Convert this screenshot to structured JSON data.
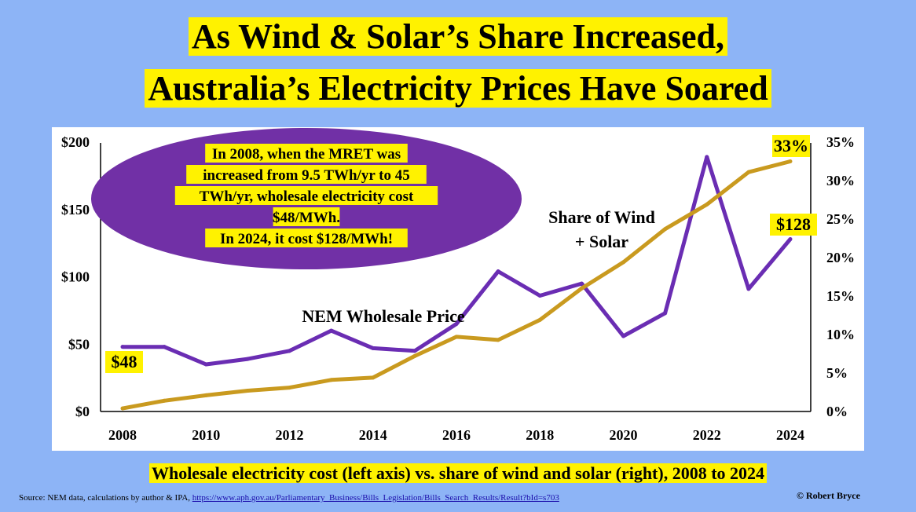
{
  "title_line1": "As Wind & Solar’s Share Increased,",
  "title_line2": "Australia’s Electricity Prices Have Soared",
  "ellipse_text": [
    "In 2008, when the MRET was",
    "increased from 9.5 TWh/yr to 45",
    "TWh/yr, wholesale electricity cost",
    "$48/MWh.",
    "In 2024, it cost $128/MWh!"
  ],
  "caption": "Wholesale electricity cost (left axis) vs. share of wind and solar (right), 2008 to 2024",
  "source_prefix": "Source: NEM data, calculations by author  & IPA, ",
  "source_link": "https://www.aph.gov.au/Parliamentary_Business/Bills_Legislation/Bills_Search_Results/Result?bId=s703",
  "credit": "© Robert Bryce",
  "colors": {
    "background": "#8db4f6",
    "highlight": "#fff200",
    "price_line": "#6a2db3",
    "share_line": "#c99a1f",
    "ellipse": "#7130a6"
  },
  "chart_data": {
    "type": "line",
    "x": [
      2008,
      2009,
      2010,
      2011,
      2012,
      2013,
      2014,
      2015,
      2016,
      2017,
      2018,
      2019,
      2020,
      2021,
      2022,
      2023,
      2024
    ],
    "series": [
      {
        "name": "NEM Wholesale Price",
        "axis": "left",
        "values": [
          48,
          48,
          35,
          39,
          45,
          60,
          47,
          45,
          65,
          104,
          86,
          95,
          56,
          73,
          189,
          91,
          128
        ]
      },
      {
        "name": "Share of Wind + Solar",
        "axis": "right",
        "values": [
          0.4,
          1.4,
          2.1,
          2.7,
          3.1,
          4.1,
          4.4,
          7.2,
          9.7,
          9.3,
          11.9,
          16.0,
          19.4,
          23.7,
          26.9,
          31.1,
          32.5
        ]
      }
    ],
    "left_axis": {
      "ticks": [
        0,
        50,
        100,
        150,
        200
      ],
      "labels": [
        "$0",
        "$50",
        "$100",
        "$150",
        "$200"
      ],
      "ylim": [
        0,
        200
      ]
    },
    "right_axis": {
      "ticks": [
        0,
        5,
        10,
        15,
        20,
        25,
        30,
        35
      ],
      "labels": [
        "0%",
        "5%",
        "10%",
        "15%",
        "20%",
        "25%",
        "30%",
        "35%"
      ],
      "ylim": [
        0,
        35
      ]
    },
    "x_ticks": [
      2008,
      2010,
      2012,
      2014,
      2016,
      2018,
      2020,
      2022,
      2024
    ],
    "x_labels": [
      "2008",
      "2010",
      "2012",
      "2014",
      "2016",
      "2018",
      "2020",
      "2022",
      "2024"
    ],
    "annotations": {
      "price_label": "NEM Wholesale Price",
      "share_label_line1": "Share of Wind",
      "share_label_line2": "+ Solar",
      "start_price": "$48",
      "end_price": "$128",
      "end_share": "33%"
    },
    "grid": false,
    "legend": "none"
  }
}
